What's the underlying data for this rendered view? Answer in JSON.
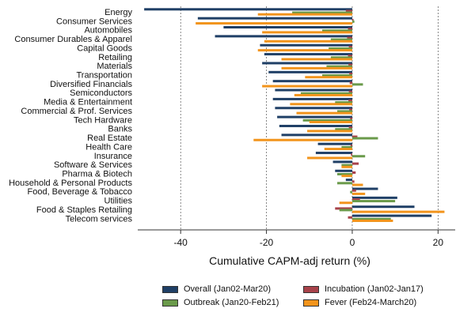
{
  "chart_data": {
    "type": "bar",
    "orientation": "horizontal",
    "xlabel": "Cumulative CAPM-adj return (%)",
    "xlim": [
      -50,
      24
    ],
    "xticks": [
      -40,
      -20,
      0,
      20
    ],
    "grid": "vertical dashed",
    "categories": [
      "Energy",
      "Consumer Services",
      "Automobiles",
      "Consumer Durables & Apparel",
      "Capital Goods",
      "Retailing",
      "Materials",
      "Transportation",
      "Diversified Financials",
      "Semiconductors",
      "Media & Entertainment",
      "Commercial & Prof. Services",
      "Tech Hardware",
      "Banks",
      "Real Estate",
      "Health Care",
      "Insurance",
      "Software & Services",
      "Pharma & Biotech",
      "Household & Personal Products",
      "Food, Beverage & Tobacco",
      "Utilities",
      "Food & Staples Retailing",
      "Telecom services"
    ],
    "series": [
      {
        "name": "Overall (Jan02-Mar20)",
        "color": "#1f3f66",
        "values": [
          -48.5,
          -36,
          -30,
          -32,
          -21.5,
          -20.5,
          -21,
          -19.5,
          -18.5,
          -18,
          -18.5,
          -18,
          -17.5,
          -17,
          -16.5,
          -8,
          -8.5,
          -4.5,
          -4,
          -1.5,
          6,
          10.5,
          14.5,
          18.5
        ]
      },
      {
        "name": "Incubation (Jan02-Jan17)",
        "color": "#a8424a",
        "values": [
          -1.5,
          0.3,
          -1.0,
          -1.2,
          -0.8,
          -1.0,
          -0.9,
          -0.7,
          -0.6,
          -0.8,
          -0.9,
          -0.7,
          -0.5,
          -0.8,
          1.2,
          -0.4,
          -0.3,
          1.5,
          0.8,
          0.5,
          0.9,
          1.8,
          -4.0,
          -1.0
        ]
      },
      {
        "name": "Outbreak (Jan20-Feb21)",
        "color": "#6a9a4a",
        "values": [
          -14,
          0.5,
          -7,
          -5,
          -5.5,
          -5,
          -6,
          -7,
          2.5,
          -12,
          -4,
          -3.5,
          -11.5,
          -4,
          6,
          -2.5,
          3,
          -2.5,
          -3.5,
          -3.5,
          -0.5,
          10,
          -3,
          9
        ]
      },
      {
        "name": "Fever (Feb24-March20)",
        "color": "#f2941c",
        "values": [
          -22,
          -36.5,
          -21,
          -20.5,
          -22,
          -16.5,
          -16.5,
          -11,
          -21,
          -13.5,
          -14.5,
          -13,
          -10,
          -10.5,
          -23,
          -6.5,
          -10.5,
          -2.5,
          -2.5,
          2.5,
          3,
          -3,
          21.5,
          9.5
        ]
      }
    ],
    "legend_position": "bottom"
  },
  "legend_labels": {
    "overall": "Overall (Jan02-Mar20)",
    "incubation": "Incubation (Jan02-Jan17)",
    "outbreak": "Outbreak (Jan20-Feb21)",
    "fever": "Fever (Feb24-March20)"
  }
}
